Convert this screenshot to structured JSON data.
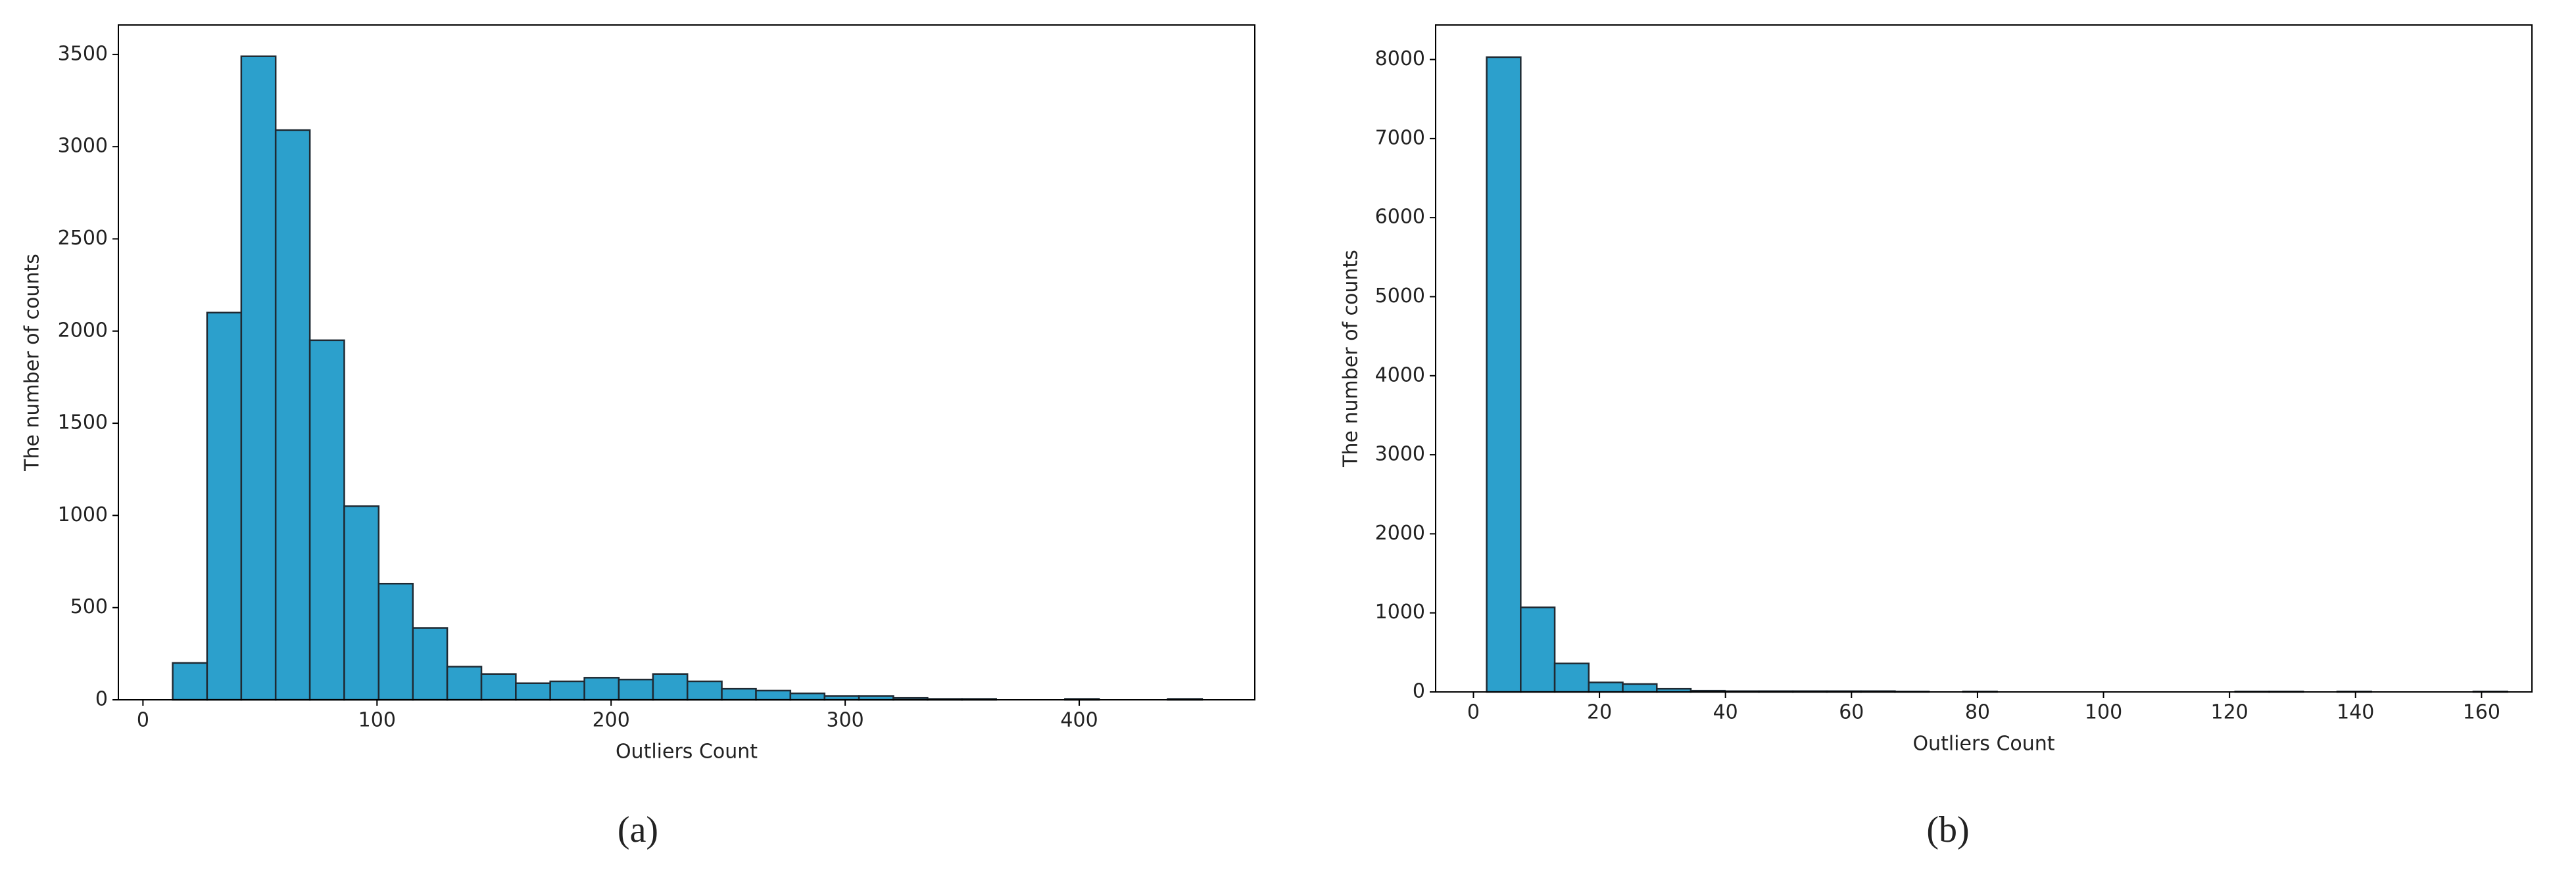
{
  "chart_data": [
    {
      "type": "histogram",
      "panel_label": "(a)",
      "xlabel": "Outliers Count",
      "ylabel": "The number of counts",
      "bins": [
        12.7,
        27.4,
        42.0,
        56.7,
        71.3,
        86.0,
        100.7,
        115.3,
        130.0,
        144.6,
        159.3,
        174.0,
        188.6,
        203.3,
        217.9,
        232.6,
        247.3,
        261.9,
        276.6,
        291.2,
        305.9,
        320.6,
        335.2,
        349.9,
        364.5,
        379.2,
        393.9,
        408.5,
        423.2,
        437.8,
        452.5
      ],
      "values": [
        200,
        2100,
        3490,
        3090,
        1950,
        1050,
        630,
        390,
        180,
        140,
        90,
        100,
        120,
        110,
        140,
        100,
        60,
        50,
        35,
        20,
        20,
        10,
        5,
        5,
        0,
        0,
        5,
        0,
        0,
        5
      ],
      "color": "#2ca0cc",
      "edgecolor": "#1f2a33",
      "xlim": [
        -10.5,
        475
      ],
      "xticks": [
        0,
        100,
        200,
        300,
        400
      ],
      "ylim": [
        0,
        3660
      ],
      "yticks": [
        0,
        500,
        1000,
        1500,
        2000,
        2500,
        3000,
        3500
      ]
    },
    {
      "type": "histogram",
      "panel_label": "(b)",
      "xlabel": "Outliers Count",
      "ylabel": "The number of counts",
      "bins": [
        2.1,
        7.5,
        12.9,
        18.3,
        23.7,
        29.1,
        34.5,
        39.9,
        45.3,
        50.7,
        56.1,
        61.5,
        66.9,
        72.3,
        77.7,
        83.1,
        88.5,
        93.9,
        99.3,
        104.7,
        110.1,
        115.5,
        120.9,
        126.3,
        131.7,
        137.1,
        142.5,
        147.9,
        153.3,
        158.7,
        164.1
      ],
      "values": [
        8030,
        1070,
        360,
        120,
        100,
        40,
        15,
        10,
        10,
        10,
        10,
        10,
        5,
        0,
        5,
        0,
        0,
        0,
        0,
        0,
        0,
        0,
        5,
        5,
        0,
        5,
        0,
        0,
        0,
        5
      ],
      "color": "#2ca0cc",
      "edgecolor": "#1f2a33",
      "xlim": [
        -6,
        168
      ],
      "xticks": [
        0,
        20,
        40,
        60,
        80,
        100,
        120,
        140,
        160
      ],
      "ylim": [
        0,
        8437
      ],
      "yticks": [
        0,
        1000,
        2000,
        3000,
        4000,
        5000,
        6000,
        7000,
        8000
      ]
    }
  ]
}
